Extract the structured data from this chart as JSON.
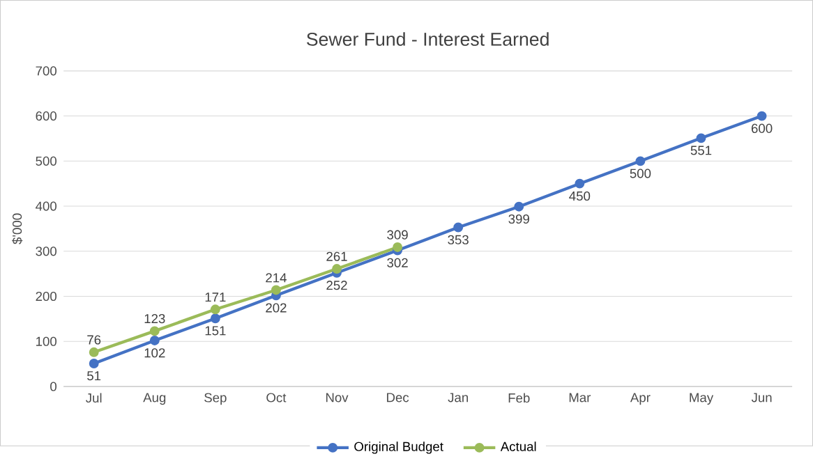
{
  "chart_data": {
    "type": "line",
    "title": "Sewer Fund - Interest Earned",
    "ylabel": "$'000",
    "categories": [
      "Jul",
      "Aug",
      "Sep",
      "Oct",
      "Nov",
      "Dec",
      "Jan",
      "Feb",
      "Mar",
      "Apr",
      "May",
      "Jun"
    ],
    "series": [
      {
        "name": "Original Budget",
        "color": "#4472c4",
        "values": [
          51,
          102,
          151,
          202,
          252,
          302,
          353,
          399,
          450,
          500,
          551,
          600
        ]
      },
      {
        "name": "Actual",
        "color": "#9bbb59",
        "values": [
          76,
          123,
          171,
          214,
          261,
          309,
          null,
          null,
          null,
          null,
          null,
          null
        ]
      }
    ],
    "ylim": [
      0,
      700
    ],
    "yticks": [
      0,
      100,
      200,
      300,
      400,
      500,
      600,
      700
    ],
    "grid": "y",
    "legend": "bottom",
    "marker": "circle",
    "data_labels": true
  }
}
